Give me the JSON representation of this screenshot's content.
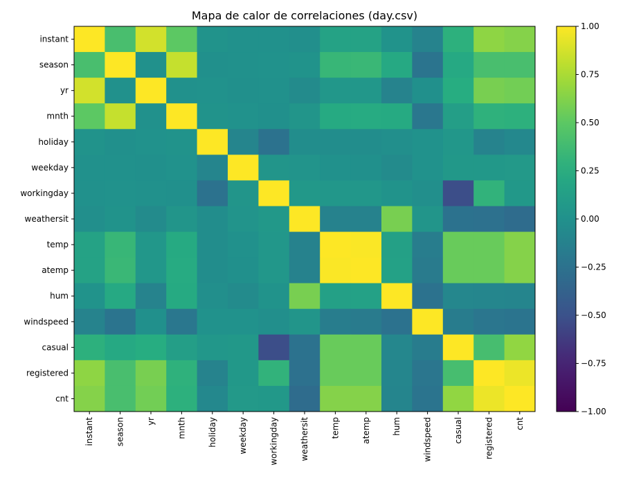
{
  "chart_data": {
    "type": "heatmap",
    "title": "Mapa de calor de correlaciones (day.csv)",
    "xlabel": "",
    "ylabel": "",
    "variables": [
      "instant",
      "season",
      "yr",
      "mnth",
      "holiday",
      "weekday",
      "workingday",
      "weathersit",
      "temp",
      "atemp",
      "hum",
      "windspeed",
      "casual",
      "registered",
      "cnt"
    ],
    "matrix": [
      [
        1.0,
        0.41,
        0.87,
        0.5,
        0.02,
        0.0,
        -0.0,
        -0.02,
        0.15,
        0.15,
        0.02,
        -0.11,
        0.28,
        0.66,
        0.63
      ],
      [
        0.41,
        1.0,
        -0.0,
        0.83,
        -0.01,
        -0.0,
        0.01,
        0.02,
        0.33,
        0.34,
        0.21,
        -0.23,
        0.21,
        0.41,
        0.41
      ],
      [
        0.87,
        -0.0,
        1.0,
        -0.0,
        0.01,
        -0.01,
        -0.0,
        -0.05,
        0.05,
        0.05,
        -0.11,
        -0.01,
        0.25,
        0.59,
        0.57
      ],
      [
        0.5,
        0.83,
        -0.0,
        1.0,
        0.02,
        0.01,
        -0.01,
        0.04,
        0.22,
        0.23,
        0.22,
        -0.21,
        0.12,
        0.29,
        0.28
      ],
      [
        0.02,
        -0.01,
        0.01,
        0.02,
        1.0,
        -0.1,
        -0.25,
        -0.03,
        -0.03,
        -0.03,
        -0.02,
        0.01,
        0.05,
        -0.11,
        -0.07
      ],
      [
        0.0,
        -0.0,
        -0.01,
        0.01,
        -0.1,
        1.0,
        0.04,
        0.03,
        -0.0,
        -0.01,
        -0.05,
        0.01,
        0.06,
        0.06,
        0.07
      ],
      [
        -0.0,
        0.01,
        -0.0,
        -0.01,
        -0.25,
        0.04,
        1.0,
        0.06,
        0.05,
        0.05,
        0.02,
        -0.02,
        -0.52,
        0.3,
        0.06
      ],
      [
        -0.02,
        0.02,
        -0.05,
        0.04,
        -0.03,
        0.03,
        0.06,
        1.0,
        -0.12,
        -0.12,
        0.59,
        0.04,
        -0.25,
        -0.26,
        -0.3
      ],
      [
        0.15,
        0.33,
        0.05,
        0.22,
        -0.03,
        -0.0,
        0.05,
        -0.12,
        1.0,
        0.99,
        0.13,
        -0.16,
        0.54,
        0.54,
        0.63
      ],
      [
        0.15,
        0.34,
        0.05,
        0.23,
        -0.03,
        -0.01,
        0.05,
        -0.12,
        0.99,
        1.0,
        0.14,
        -0.18,
        0.54,
        0.54,
        0.63
      ],
      [
        0.02,
        0.21,
        -0.11,
        0.22,
        -0.02,
        -0.05,
        0.02,
        0.59,
        0.13,
        0.14,
        1.0,
        -0.25,
        -0.08,
        -0.09,
        -0.1
      ],
      [
        -0.11,
        -0.23,
        -0.01,
        -0.21,
        0.01,
        0.01,
        -0.02,
        0.04,
        -0.16,
        -0.18,
        -0.25,
        1.0,
        -0.17,
        -0.22,
        -0.23
      ],
      [
        0.28,
        0.21,
        0.25,
        0.12,
        0.05,
        0.06,
        -0.52,
        -0.25,
        0.54,
        0.54,
        -0.08,
        -0.17,
        1.0,
        0.4,
        0.67
      ],
      [
        0.66,
        0.41,
        0.59,
        0.29,
        -0.11,
        0.06,
        0.3,
        -0.26,
        0.54,
        0.54,
        -0.09,
        -0.22,
        0.4,
        1.0,
        0.95
      ],
      [
        0.63,
        0.41,
        0.57,
        0.28,
        -0.07,
        0.07,
        0.06,
        -0.3,
        0.63,
        0.63,
        -0.1,
        -0.23,
        0.67,
        0.95,
        1.0
      ]
    ],
    "colormap": "viridis",
    "vmin": -1.0,
    "vmax": 1.0,
    "colorbar_ticks": [
      -1.0,
      -0.75,
      -0.5,
      -0.25,
      0.0,
      0.25,
      0.5,
      0.75,
      1.0
    ],
    "colorbar_tick_labels": [
      "−1.00",
      "−0.75",
      "−0.50",
      "−0.25",
      "0.00",
      "0.25",
      "0.50",
      "0.75",
      "1.00"
    ],
    "grid": false,
    "legend": "colorbar-right"
  }
}
